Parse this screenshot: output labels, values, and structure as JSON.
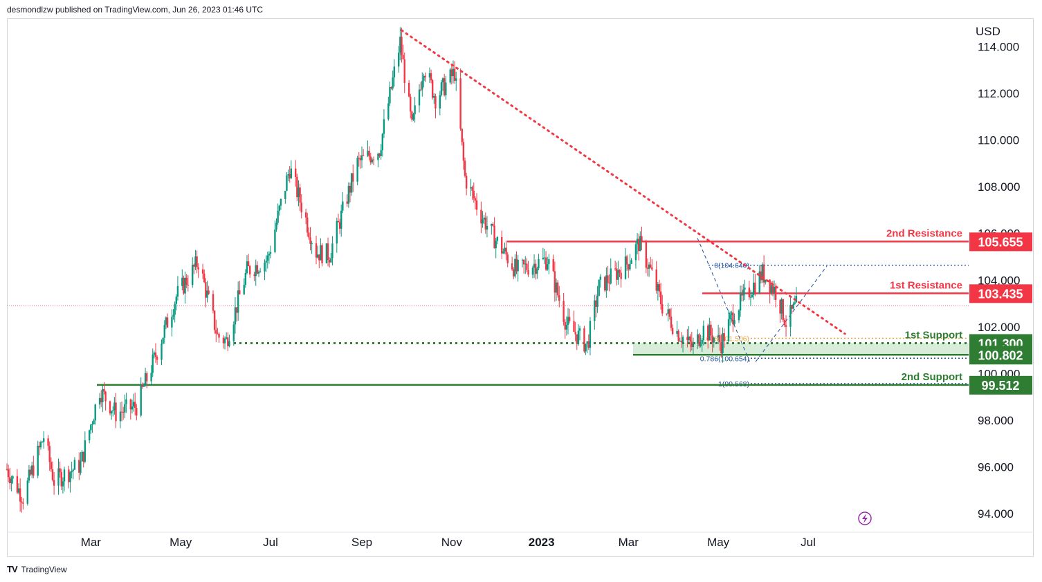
{
  "header": {
    "published": "desmondlzw published on TradingView.com, Jun 26, 2023 01:46 UTC"
  },
  "footer": {
    "brand": "TradingView",
    "logo_icon": "tradingview-logo-icon"
  },
  "colors": {
    "up": "#089981",
    "down": "#f23645",
    "resistance": "#f23645",
    "support": "#2e7d32",
    "fib": "#1e4fa0",
    "fib_golden": "#e8a33d",
    "trendline": "#ef3a45"
  },
  "chart_data": {
    "type": "candlestick",
    "currency_label": "USD",
    "ylim": [
      93.2,
      115.2
    ],
    "y_ticks": [
      "94.000",
      "96.000",
      "98.000",
      "100.000",
      "102.000",
      "104.000",
      "106.000",
      "108.000",
      "110.000",
      "112.000",
      "114.000"
    ],
    "x_tick_labels": [
      "Mar",
      "May",
      "Jul",
      "Sep",
      "Nov",
      "2023",
      "Mar",
      "May",
      "Jul"
    ],
    "x_tick_dates": [
      "2022-03-01",
      "2022-05-01",
      "2022-07-01",
      "2022-09-01",
      "2022-11-01",
      "2023-01-01",
      "2023-03-01",
      "2023-05-01",
      "2023-07-01"
    ],
    "x_range": [
      "2022-01-03",
      "2023-10-18"
    ],
    "close_path": [
      [
        "2022-01-03",
        95.9
      ],
      [
        "2022-01-14",
        94.7
      ],
      [
        "2022-01-28",
        97.3
      ],
      [
        "2022-02-04",
        95.4
      ],
      [
        "2022-02-22",
        96.1
      ],
      [
        "2022-03-07",
        99.3
      ],
      [
        "2022-03-18",
        98.3
      ],
      [
        "2022-04-01",
        98.6
      ],
      [
        "2022-04-13",
        100.6
      ],
      [
        "2022-04-28",
        103.3
      ],
      [
        "2022-05-13",
        104.8
      ],
      [
        "2022-05-26",
        101.6
      ],
      [
        "2022-06-01",
        101.4
      ],
      [
        "2022-06-15",
        104.4
      ],
      [
        "2022-06-29",
        104.9
      ],
      [
        "2022-07-14",
        108.8
      ],
      [
        "2022-08-01",
        105.2
      ],
      [
        "2022-08-10",
        105.1
      ],
      [
        "2022-08-29",
        109.0
      ],
      [
        "2022-09-13",
        109.6
      ],
      [
        "2022-09-27",
        114.2
      ],
      [
        "2022-10-05",
        110.5
      ],
      [
        "2022-10-13",
        113.2
      ],
      [
        "2022-10-21",
        111.8
      ],
      [
        "2022-11-03",
        112.9
      ],
      [
        "2022-11-10",
        108.4
      ],
      [
        "2022-11-20",
        106.9
      ],
      [
        "2022-11-30",
        105.8
      ],
      [
        "2022-12-15",
        104.4
      ],
      [
        "2023-01-05",
        104.9
      ],
      [
        "2023-01-18",
        102.1
      ],
      [
        "2023-02-01",
        101.2
      ],
      [
        "2023-02-09",
        103.7
      ],
      [
        "2023-02-28",
        104.7
      ],
      [
        "2023-03-08",
        105.6
      ],
      [
        "2023-03-16",
        104.4
      ],
      [
        "2023-03-24",
        102.9
      ],
      [
        "2023-04-03",
        101.8
      ],
      [
        "2023-04-14",
        101.1
      ],
      [
        "2023-04-21",
        101.9
      ],
      [
        "2023-05-03",
        101.3
      ],
      [
        "2023-05-12",
        102.7
      ],
      [
        "2023-05-31",
        104.3
      ],
      [
        "2023-06-09",
        103.5
      ],
      [
        "2023-06-16",
        102.2
      ],
      [
        "2023-06-23",
        102.9
      ]
    ],
    "last_price": 102.9,
    "levels": [
      {
        "name": "2nd Resistance",
        "value": "105.655",
        "kind": "resistance"
      },
      {
        "name": "1st Resistance",
        "value": "103.435",
        "kind": "resistance"
      },
      {
        "name": "1st Support",
        "value": "101.300",
        "kind": "support"
      },
      {
        "name": "",
        "value": "100.802",
        "kind": "support"
      },
      {
        "name": "2nd Support",
        "value": "99.512",
        "kind": "support"
      }
    ],
    "fib_levels": [
      {
        "label": "0(104.640)",
        "value": 104.64
      },
      {
        "label": "0.618(101.506)",
        "value": 101.506
      },
      {
        "label": "0.786(100.654)",
        "value": 100.654
      },
      {
        "label": "1(99.568)",
        "value": 99.568
      }
    ],
    "support_zone": [
      100.802,
      101.3
    ],
    "trendline": [
      [
        "2022-09-28",
        114.7
      ],
      [
        "2023-07-26",
        101.7
      ]
    ],
    "annotation_icon": "lightning-icon"
  }
}
